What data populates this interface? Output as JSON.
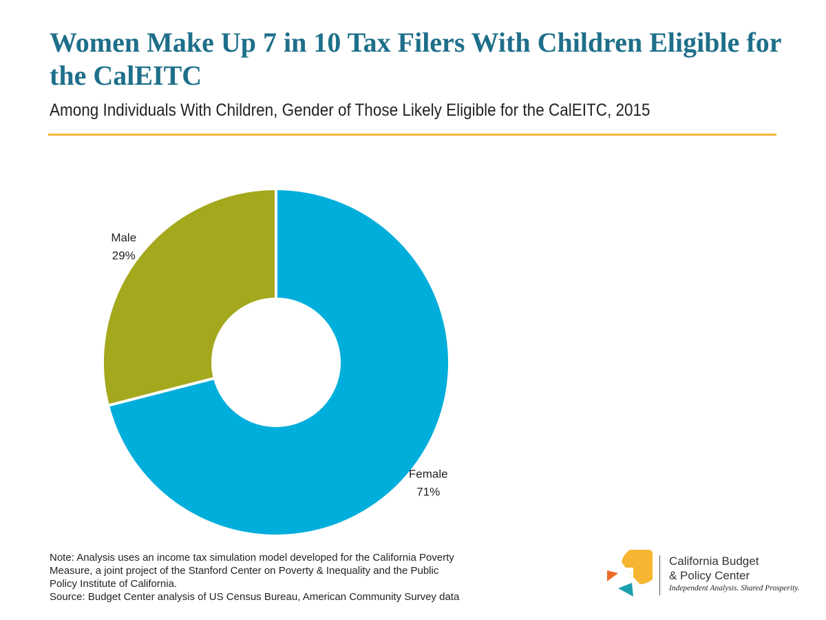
{
  "header": {
    "title": "Women Make Up 7 in 10 Tax Filers With Children Eligible for the CalEITC",
    "subtitle": "Among Individuals With Children, Gender of Those Likely Eligible for the CalEITC, 2015"
  },
  "chart_data": {
    "type": "pie",
    "variant": "donut",
    "title": "Women Make Up 7 in 10 Tax Filers With Children Eligible for the CalEITC",
    "subtitle": "Among Individuals With Children, Gender of Those Likely Eligible for the CalEITC, 2015",
    "slices": [
      {
        "label": "Female",
        "value": 71,
        "display": "71%",
        "color": "#00aedb"
      },
      {
        "label": "Male",
        "value": 29,
        "display": "29%",
        "color": "#a3a81d"
      }
    ],
    "legend": "none"
  },
  "footer": {
    "note_lines": [
      "Note: Analysis uses an income tax simulation model developed for the California Poverty",
      "Measure, a joint project of the Stanford Center on Poverty & Inequality and the Public",
      "Policy Institute of California."
    ],
    "source": "Source: Budget Center analysis of US Census Bureau, American Community Survey data"
  },
  "logo": {
    "name_line1": "California Budget",
    "name_line2": "& Policy Center",
    "tagline": "Independent Analysis. Shared Prosperity.",
    "colors": {
      "yellow": "#f7b631",
      "orange": "#ef6b2c",
      "teal": "#1ea0ae"
    }
  },
  "colors": {
    "title": "#1e6f8a",
    "rule": "#f4b63a"
  }
}
